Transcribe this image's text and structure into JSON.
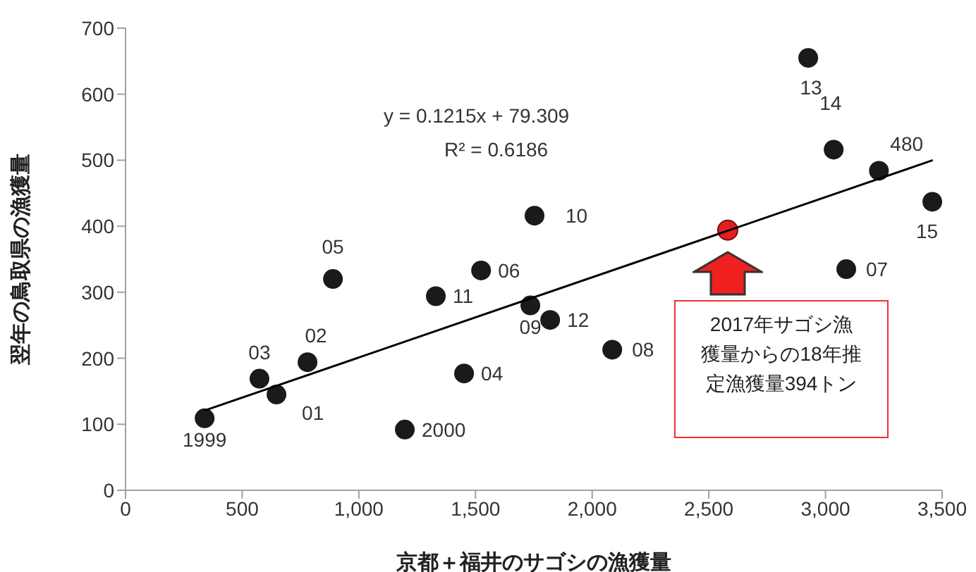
{
  "chart_data": {
    "type": "scatter",
    "xlabel": "京都＋福井のサゴシの漁獲量",
    "ylabel": "翌年の鳥取県の漁獲量",
    "xlim": [
      0,
      3500
    ],
    "xticks": [
      {
        "value": 0,
        "label": "0"
      },
      {
        "value": 500,
        "label": "500"
      },
      {
        "value": 1000,
        "label": "1,000"
      },
      {
        "value": 1500,
        "label": "1,500"
      },
      {
        "value": 2000,
        "label": "2,000"
      },
      {
        "value": 2500,
        "label": "2,500"
      },
      {
        "value": 3000,
        "label": "3,000"
      },
      {
        "value": 3500,
        "label": "3,500"
      }
    ],
    "ylim": [
      0,
      700
    ],
    "yticks": [
      0,
      100,
      200,
      300,
      400,
      500,
      600,
      700
    ],
    "grid": false,
    "marker": "circle",
    "series": [
      {
        "color": "#1a1a1a",
        "x": [
          339,
          574,
          647,
          780,
          889,
          1197,
          1330,
          1451,
          1524,
          1753,
          1735,
          1820,
          2086,
          2926,
          3035,
          3229,
          3458,
          3089
        ],
        "values": [
          109,
          169,
          145,
          194,
          320,
          92,
          294,
          177,
          333,
          416,
          280,
          258,
          213,
          655,
          516,
          484,
          437,
          335
        ]
      },
      {
        "color": "#e02020",
        "x": [
          2581
        ],
        "values": [
          394
        ]
      },
      {
        "type": "line",
        "color": "#000000",
        "line_style": "solid",
        "marker": "none",
        "x": [
          340,
          3460
        ],
        "values": [
          121,
          500
        ]
      }
    ],
    "annotations": [
      {
        "text": "1999",
        "x": 339,
        "y": 109
      },
      {
        "text": "03",
        "x": 574,
        "y": 169
      },
      {
        "text": "01",
        "x": 647,
        "y": 145
      },
      {
        "text": "02",
        "x": 780,
        "y": 194
      },
      {
        "text": "05",
        "x": 889,
        "y": 320
      },
      {
        "text": "2000",
        "x": 1197,
        "y": 92
      },
      {
        "text": "11",
        "x": 1330,
        "y": 294
      },
      {
        "text": "04",
        "x": 1451,
        "y": 177
      },
      {
        "text": "06",
        "x": 1524,
        "y": 333
      },
      {
        "text": "10",
        "x": 1753,
        "y": 416
      },
      {
        "text": "09",
        "x": 1735,
        "y": 280
      },
      {
        "text": "12",
        "x": 1820,
        "y": 258
      },
      {
        "text": "08",
        "x": 2086,
        "y": 213
      },
      {
        "text": "13",
        "x": 2926,
        "y": 655
      },
      {
        "text": "14",
        "x": 3035,
        "y": 516
      },
      {
        "text": "480",
        "x": 3229,
        "y": 484
      },
      {
        "text": "15",
        "x": 3458,
        "y": 437
      },
      {
        "text": "07",
        "x": 3089,
        "y": 335
      },
      "y = 0.1215x + 79.309",
      "R² = 0.6186",
      "2017年サゴシ漁獲量からの18年推定漁獲量394トン"
    ]
  }
}
